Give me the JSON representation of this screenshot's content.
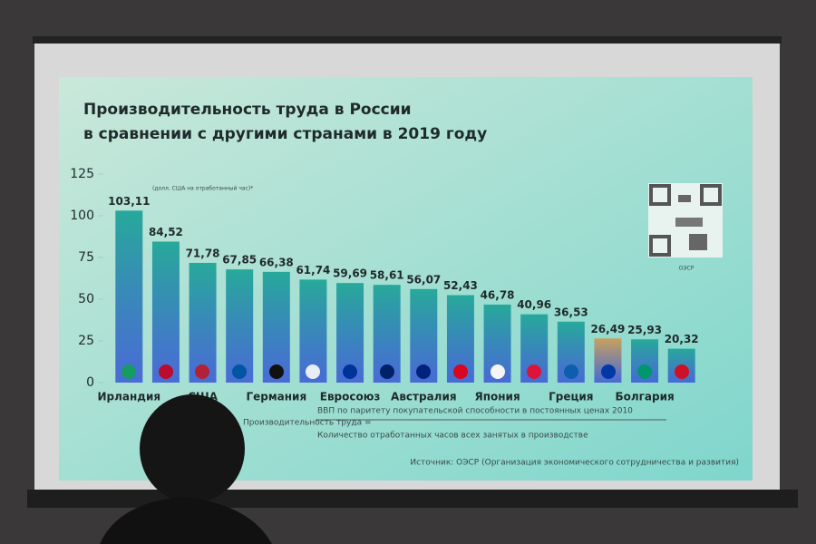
{
  "chart_data": {
    "type": "bar",
    "title_lines": [
      "Производительность труда в России",
      "в сравнении с другими странами в 2019 году"
    ],
    "unit_note": "(долл. США на отработанный час)*",
    "categories": [
      "Ирландия",
      null,
      "США",
      null,
      "Германия",
      null,
      "Евросоюз",
      null,
      "Австралия",
      null,
      "Япония",
      null,
      "Греция",
      null,
      "Болгария",
      null
    ],
    "values": [
      103.11,
      84.52,
      71.78,
      67.85,
      66.38,
      61.74,
      59.69,
      58.61,
      56.07,
      52.43,
      46.78,
      40.96,
      36.53,
      26.49,
      25.93,
      20.32
    ],
    "value_labels": [
      "103,11",
      "84,52",
      "71,78",
      "67,85",
      "66,38",
      "61,74",
      "59,69",
      "58,61",
      "56,07",
      "52,43",
      "46,78",
      "40,96",
      "36,53",
      "26,49",
      "25,93",
      "20,32"
    ],
    "colors": [
      "#27a99a",
      "#27a99a",
      "#27a99a",
      "#27a99a",
      "#27a99a",
      "#27a99a",
      "#27a99a",
      "#27a99a",
      "#27a99a",
      "#27a99a",
      "#27a99a",
      "#27a99a",
      "#27a99a",
      "#c9a15c",
      "#27a99a",
      "#27a99a"
    ],
    "ylim": [
      0,
      125
    ],
    "yticks": [
      0,
      25,
      50,
      75,
      100,
      125
    ],
    "formula_lhs": "Производительность труда =",
    "formula_numerator": "ВВП по паритету покупательской способности в постоянных ценах 2010",
    "formula_denominator": "Количество отработанных часов всех занятых в производстве",
    "qr_label": "ОЭСР",
    "source": "Источник: ОЭСР (Организация экономического сотрудничества и развития)"
  }
}
